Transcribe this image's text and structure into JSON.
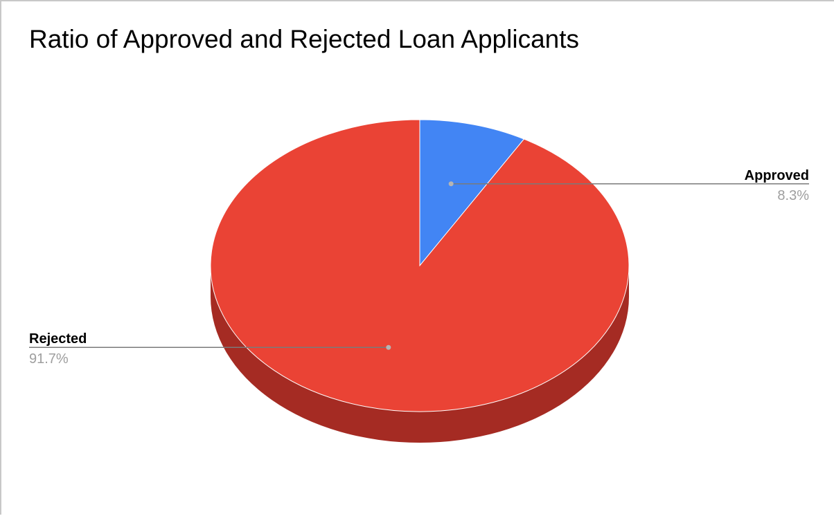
{
  "chart_data": {
    "type": "pie",
    "style": "3d",
    "title": "Ratio of Approved and Rejected Loan Applicants",
    "slices": [
      {
        "label": "Approved",
        "percent": 8.3,
        "percent_label": "8.3%",
        "color": "#4285f4",
        "side_color": "#2f63c4"
      },
      {
        "label": "Rejected",
        "percent": 91.7,
        "percent_label": "91.7%",
        "color": "#ea4335",
        "side_color": "#a52b23"
      }
    ],
    "legend": "none"
  }
}
